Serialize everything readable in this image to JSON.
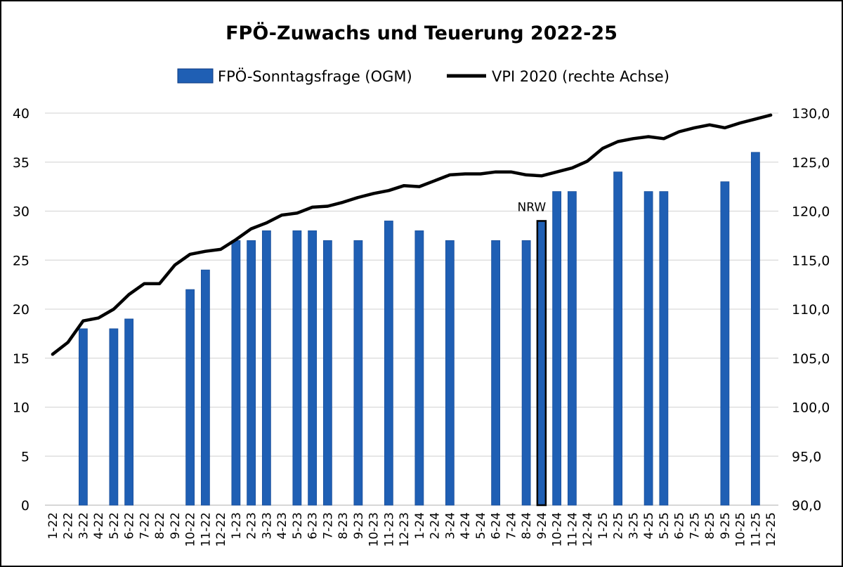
{
  "chart_data": {
    "type": "bar",
    "title": "FPÖ-Zuwachs und Teuerung 2022-25",
    "xlabel": "",
    "ylabel": "",
    "legend_position": "top",
    "grid": true,
    "colors": {
      "bars": "#1f5fb4",
      "line": "#000000",
      "grid": "#d9d9d9",
      "highlight": "#1f3f6e"
    },
    "categories": [
      "1-22",
      "2-22",
      "3-22",
      "4-22",
      "5-22",
      "6-22",
      "7-22",
      "8-22",
      "9-22",
      "10-22",
      "11-22",
      "12-22",
      "1-23",
      "2-23",
      "3-23",
      "4-23",
      "5-23",
      "6-23",
      "7-23",
      "8-23",
      "9-23",
      "10-23",
      "11-23",
      "12-23",
      "1-24",
      "2-24",
      "3-24",
      "4-24",
      "5-24",
      "6-24",
      "7-24",
      "8-24",
      "9-24",
      "10-24",
      "11-24",
      "12-24",
      "1-25",
      "2-25",
      "3-25",
      "4-25",
      "5-25",
      "6-25",
      "7-25",
      "8-25",
      "9-25",
      "10-25",
      "11-25",
      "12-25"
    ],
    "series": [
      {
        "name": "FPÖ-Sonntagsfrage (OGM)",
        "type": "bar",
        "axis": "left",
        "values": [
          null,
          null,
          18,
          null,
          18,
          19,
          null,
          null,
          null,
          22,
          24,
          null,
          27,
          27,
          28,
          null,
          28,
          28,
          27,
          null,
          27,
          null,
          29,
          null,
          28,
          null,
          27,
          null,
          null,
          27,
          null,
          27,
          29,
          32,
          32,
          null,
          null,
          34,
          null,
          32,
          32,
          null,
          null,
          null,
          33,
          null,
          36,
          null
        ]
      },
      {
        "name": "VPI 2020 (rechte Achse)",
        "type": "line",
        "axis": "right",
        "values": [
          105.4,
          106.6,
          108.8,
          109.1,
          110.0,
          111.5,
          112.6,
          112.6,
          114.5,
          115.6,
          115.9,
          116.1,
          117.1,
          118.2,
          118.8,
          119.6,
          119.8,
          120.4,
          120.5,
          120.9,
          121.4,
          121.8,
          122.1,
          122.6,
          122.5,
          123.1,
          123.7,
          123.8,
          123.8,
          124.0,
          124.0,
          123.7,
          123.6,
          124.0,
          124.4,
          125.1,
          126.4,
          127.1,
          127.4,
          127.6,
          127.4,
          128.1,
          128.5,
          128.8,
          128.5,
          129.0,
          129.4,
          129.8
        ]
      }
    ],
    "y_left": {
      "ylim": [
        0,
        40
      ],
      "ticks": [
        "0",
        "5",
        "10",
        "15",
        "20",
        "25",
        "30",
        "35",
        "40"
      ]
    },
    "y_right": {
      "ylim": [
        90,
        130
      ],
      "ticks": [
        "90,0",
        "95,0",
        "100,0",
        "105,0",
        "110,0",
        "115,0",
        "120,0",
        "125,0",
        "130,0"
      ]
    },
    "annotations": [
      {
        "text": "NRW",
        "category": "9-24"
      }
    ],
    "highlight_category": "9-24"
  }
}
